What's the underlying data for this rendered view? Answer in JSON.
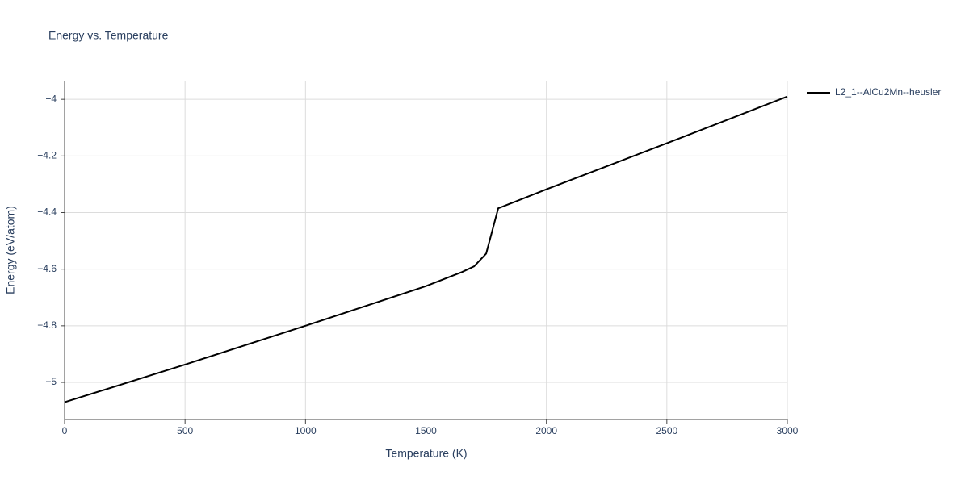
{
  "chart_data": {
    "type": "line",
    "title": "Energy vs. Temperature",
    "x_label": "Temperature (K)",
    "y_label": "Energy (eV/atom)",
    "x": [
      0,
      500,
      1000,
      1500,
      1650,
      1700,
      1750,
      1800,
      2000,
      2500,
      3000
    ],
    "series": [
      {
        "name": "L2_1--AlCu2Mn--heusler",
        "color": "#000000",
        "values": [
          -5.07,
          -4.937,
          -4.8,
          -4.66,
          -4.61,
          -4.59,
          -4.545,
          -4.385,
          -4.318,
          -4.155,
          -3.99
        ]
      }
    ],
    "xlim": [
      0,
      3000
    ],
    "ylim": [
      -5.131,
      -3.934
    ],
    "xticks": [
      0,
      500,
      1000,
      1500,
      2000,
      2500,
      3000
    ],
    "yticks": [
      {
        "value": -5,
        "label": "−5"
      },
      {
        "value": -4.8,
        "label": "−4.8"
      },
      {
        "value": -4.6,
        "label": "−4.6"
      },
      {
        "value": -4.4,
        "label": "−4.4"
      },
      {
        "value": -4.2,
        "label": "−4.2"
      },
      {
        "value": -4,
        "label": "−4"
      }
    ],
    "grid": true,
    "legend": "top-right"
  }
}
